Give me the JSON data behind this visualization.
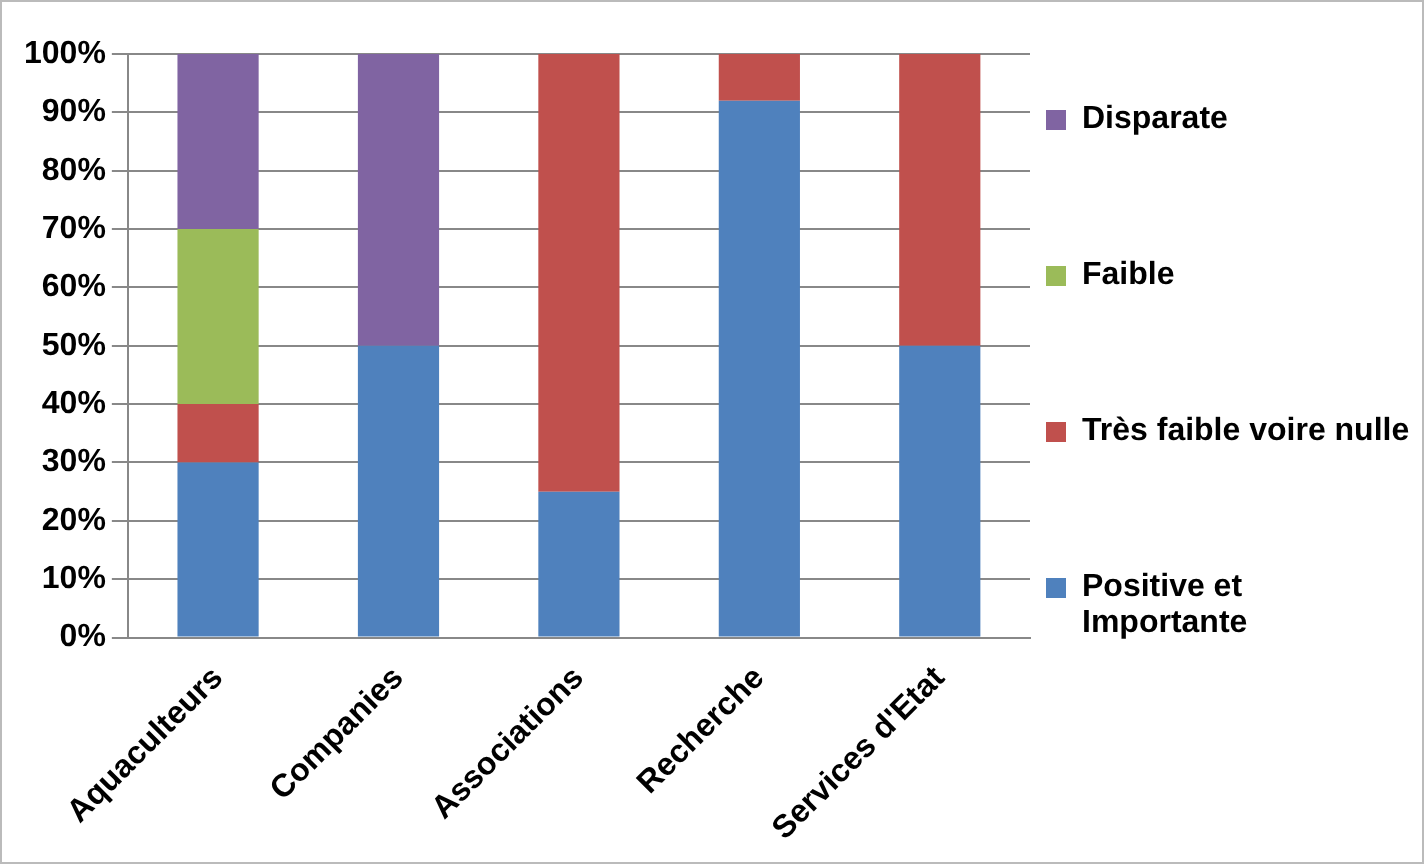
{
  "chart_data": {
    "type": "bar",
    "stacked": true,
    "categories": [
      "Aquaculteurs",
      "Companies",
      "Associations",
      "Recherche",
      "Services d'Etat"
    ],
    "series": [
      {
        "name": "Positive et Importante",
        "color": "#4f81bd",
        "values": [
          30,
          50,
          25,
          92,
          50
        ]
      },
      {
        "name": "Très faible voire nulle",
        "color": "#c0504d",
        "values": [
          10,
          null,
          75,
          8,
          50
        ]
      },
      {
        "name": "Faible",
        "color": "#9bbb59",
        "values": [
          30,
          null,
          null,
          null,
          null
        ]
      },
      {
        "name": "Disparate",
        "color": "#8064a2",
        "values": [
          30,
          50,
          null,
          null,
          null
        ]
      }
    ],
    "ylim": [
      0,
      100
    ],
    "yticks": [
      {
        "value": 0,
        "label": "0%"
      },
      {
        "value": 10,
        "label": "10%"
      },
      {
        "value": 20,
        "label": "20%"
      },
      {
        "value": 30,
        "label": "30%"
      },
      {
        "value": 40,
        "label": "40%"
      },
      {
        "value": 50,
        "label": "50%"
      },
      {
        "value": 60,
        "label": "60%"
      },
      {
        "value": 70,
        "label": "70%"
      },
      {
        "value": 80,
        "label": "80%"
      },
      {
        "value": 90,
        "label": "90%"
      },
      {
        "value": 100,
        "label": "100%"
      }
    ],
    "grid": "y",
    "legend": "right"
  }
}
